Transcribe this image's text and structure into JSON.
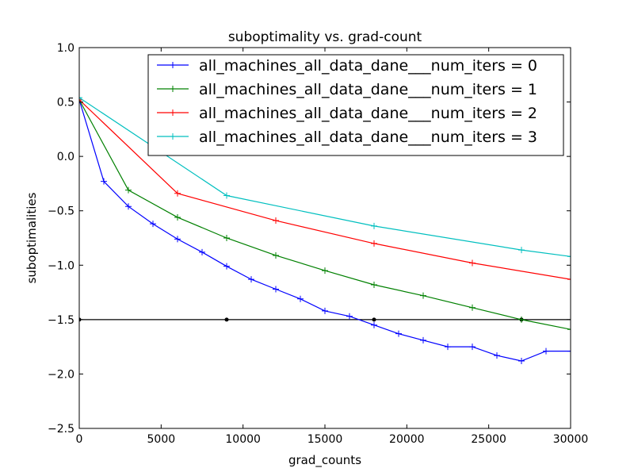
{
  "chart_data": {
    "type": "line",
    "title": "suboptimality vs. grad-count",
    "xlabel": "grad_counts",
    "ylabel": "suboptimalities",
    "xlim": [
      0,
      30000
    ],
    "ylim": [
      -2.5,
      1.0
    ],
    "xticks": [
      0,
      5000,
      10000,
      15000,
      20000,
      25000,
      30000
    ],
    "xtick_labels": [
      "0",
      "5000",
      "10000",
      "15000",
      "20000",
      "25000",
      "30000"
    ],
    "yticks": [
      1.0,
      0.5,
      0.0,
      -0.5,
      -1.0,
      -1.5,
      -2.0,
      -2.5
    ],
    "ytick_labels": [
      "1.0",
      "0.5",
      "0.0",
      "−0.5",
      "−1.0",
      "−1.5",
      "−2.0",
      "−2.5"
    ],
    "grid": false,
    "legend_position": "top-right",
    "series": [
      {
        "name": "all_machines_all_data_dane___num_iters = 0",
        "color": "#0000ff",
        "marker": "plus",
        "x": [
          0,
          1500,
          3000,
          4500,
          6000,
          7500,
          9000,
          10500,
          12000,
          13500,
          15000,
          16500,
          18000,
          19500,
          21000,
          22500,
          24000,
          25500,
          27000,
          28500,
          30000
        ],
        "y": [
          0.52,
          -0.23,
          -0.46,
          -0.62,
          -0.76,
          -0.88,
          -1.01,
          -1.13,
          -1.22,
          -1.31,
          -1.42,
          -1.47,
          -1.55,
          -1.63,
          -1.69,
          -1.75,
          -1.75,
          -1.83,
          -1.88,
          -1.79,
          -1.79
        ]
      },
      {
        "name": "all_machines_all_data_dane___num_iters = 1",
        "color": "#008000",
        "marker": "plus",
        "x": [
          0,
          3000,
          6000,
          9000,
          12000,
          15000,
          18000,
          21000,
          24000,
          27000,
          30000
        ],
        "y": [
          0.52,
          -0.31,
          -0.56,
          -0.75,
          -0.91,
          -1.05,
          -1.18,
          -1.28,
          -1.39,
          -1.5,
          -1.59
        ]
      },
      {
        "name": "all_machines_all_data_dane___num_iters = 2",
        "color": "#ff0000",
        "marker": "plus",
        "x": [
          0,
          6000,
          12000,
          18000,
          24000,
          30000
        ],
        "y": [
          0.52,
          -0.34,
          -0.59,
          -0.8,
          -0.98,
          -1.13
        ]
      },
      {
        "name": "all_machines_all_data_dane___num_iters = 3",
        "color": "#00bfbf",
        "marker": "plus",
        "x": [
          0,
          9000,
          18000,
          27000,
          30000
        ],
        "y": [
          0.54,
          -0.36,
          -0.64,
          -0.86,
          -0.92
        ]
      }
    ],
    "reference_line": {
      "color": "#000000",
      "y": -1.5,
      "marker": "dot",
      "x_points": [
        0,
        9000,
        18000,
        27000
      ]
    }
  }
}
